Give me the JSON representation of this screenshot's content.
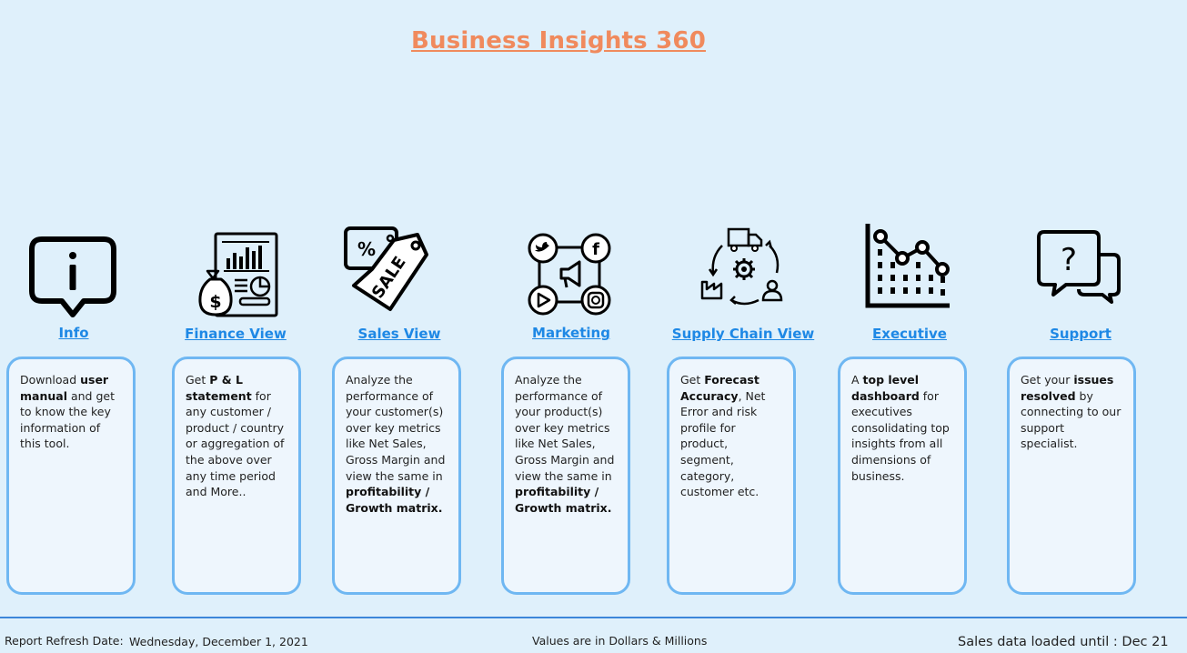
{
  "header": {
    "title": "Business Insights 360"
  },
  "nav": {
    "info": {
      "label": "Info",
      "icon": "info-speech-bubble-icon",
      "desc": [
        {
          "t": "Download "
        },
        {
          "t": "user manual",
          "b": true
        },
        {
          "t": " and get to know the key information of this tool."
        }
      ]
    },
    "finance": {
      "label": "Finance View",
      "icon": "finance-report-moneybag-icon",
      "desc": [
        {
          "t": "Get  "
        },
        {
          "t": "P & L statement",
          "b": true
        },
        {
          "t": " for any customer / product / country or aggregation of the above over any time period and More.."
        }
      ]
    },
    "sales": {
      "label": "Sales View",
      "icon": "sale-tag-icon",
      "desc": [
        {
          "t": "Analyze the performance of your customer(s) over key metrics like Net Sales, Gross Margin and view the same in "
        },
        {
          "t": "profitability / Growth matrix.",
          "b": true
        }
      ]
    },
    "marketing": {
      "label": "Marketing",
      "icon": "social-media-marketing-icon",
      "desc": [
        {
          "t": "Analyze the performance of your product(s) over key metrics like Net Sales, Gross Margin and view the same in "
        },
        {
          "t": "profitability / Growth matrix.",
          "b": true
        }
      ]
    },
    "supply": {
      "label": "Supply Chain View",
      "icon": "supply-chain-cycle-icon",
      "desc": [
        {
          "t": "Get "
        },
        {
          "t": "Forecast Accuracy",
          "b": true
        },
        {
          "t": ", Net Error and risk profile for product, segment, category, customer etc."
        }
      ]
    },
    "executive": {
      "label": "Executive",
      "icon": "executive-line-chart-icon",
      "desc": [
        {
          "t": "A "
        },
        {
          "t": "top level dashboard",
          "b": true
        },
        {
          "t": " for executives consolidating top insights from all dimensions of business."
        }
      ]
    },
    "support": {
      "label": "Support",
      "icon": "support-question-chat-icon",
      "desc": [
        {
          "t": "Get your "
        },
        {
          "t": "issues resolved",
          "b": true
        },
        {
          "t": " by connecting to our support specialist."
        }
      ]
    }
  },
  "footer": {
    "refresh_label": "Report Refresh Date:",
    "refresh_date": "Wednesday, December 1, 2021",
    "values_note": "Values are in Dollars & Millions",
    "loaded_until": "Sales data loaded until : Dec 21"
  },
  "colors": {
    "background": "#dff0fb",
    "title": "#f08a5d",
    "link": "#1e88e5",
    "card_border": "#6fb7f2",
    "footer_line": "#3c86d9"
  }
}
